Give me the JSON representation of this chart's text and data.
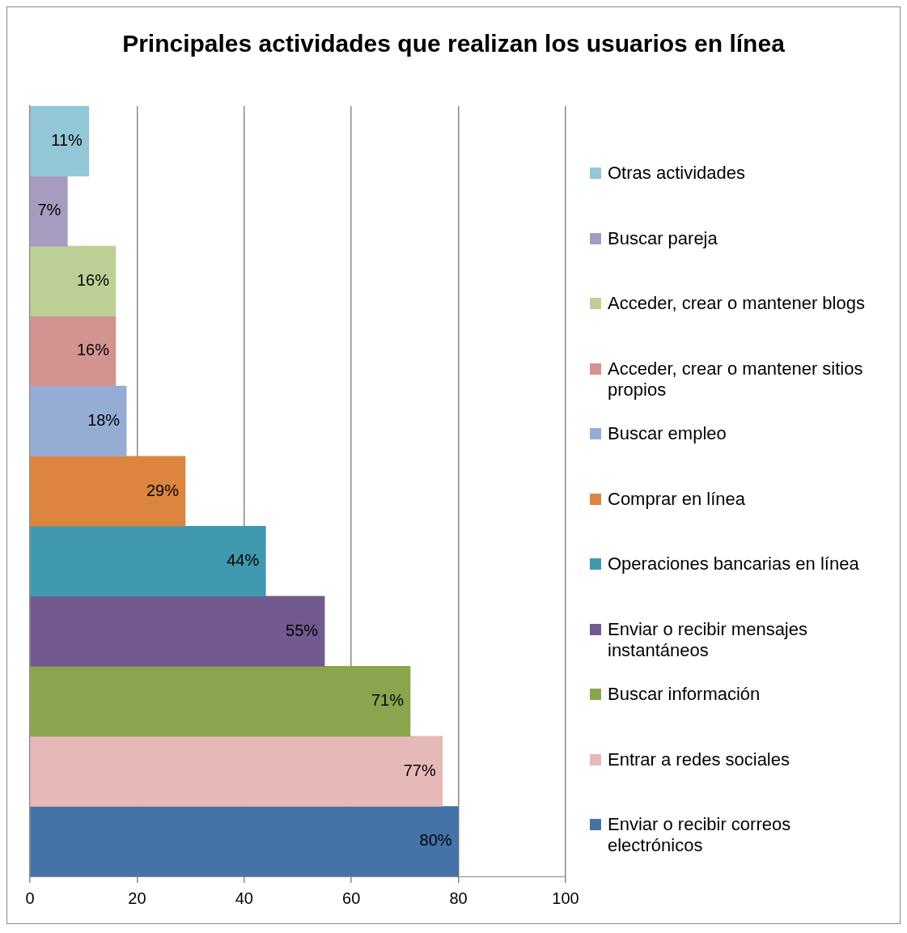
{
  "chart_data": {
    "type": "bar",
    "orientation": "horizontal",
    "title": "Principales actividades que realizan los usuarios en línea",
    "categories": [
      null,
      null,
      null,
      null,
      null,
      null,
      null,
      null,
      null,
      null,
      null
    ],
    "xlim": [
      0,
      100
    ],
    "xticks": [
      0,
      20,
      40,
      60,
      80,
      100
    ],
    "grid": "x",
    "legend": "right",
    "series": [
      {
        "name": "Otras actividades",
        "color": "#93c6d6",
        "values": [
          11,
          null,
          null,
          null,
          null,
          null,
          null,
          null,
          null,
          null,
          null
        ],
        "value_labels": [
          "11%",
          null,
          null,
          null,
          null,
          null,
          null,
          null,
          null,
          null,
          null
        ]
      },
      {
        "name": "Buscar pareja",
        "color": "#a89bc0",
        "values": [
          null,
          7,
          null,
          null,
          null,
          null,
          null,
          null,
          null,
          null,
          null
        ],
        "value_labels": [
          null,
          "7%",
          null,
          null,
          null,
          null,
          null,
          null,
          null,
          null,
          null
        ]
      },
      {
        "name": "Acceder, crear o mantener blogs",
        "color": "#bcd095",
        "values": [
          null,
          null,
          16,
          null,
          null,
          null,
          null,
          null,
          null,
          null,
          null
        ],
        "value_labels": [
          null,
          null,
          "16%",
          null,
          null,
          null,
          null,
          null,
          null,
          null,
          null
        ]
      },
      {
        "name": "Acceder, crear o mantener sitios propios",
        "color": "#d39390",
        "values": [
          null,
          null,
          null,
          16,
          null,
          null,
          null,
          null,
          null,
          null,
          null
        ],
        "value_labels": [
          null,
          null,
          null,
          "16%",
          null,
          null,
          null,
          null,
          null,
          null,
          null
        ]
      },
      {
        "name": "Buscar empleo",
        "color": "#95acd4",
        "values": [
          null,
          null,
          null,
          null,
          18,
          null,
          null,
          null,
          null,
          null,
          null
        ],
        "value_labels": [
          null,
          null,
          null,
          null,
          "18%",
          null,
          null,
          null,
          null,
          null,
          null
        ]
      },
      {
        "name": "Comprar en línea",
        "color": "#dc853f",
        "values": [
          null,
          null,
          null,
          null,
          null,
          29,
          null,
          null,
          null,
          null,
          null
        ],
        "value_labels": [
          null,
          null,
          null,
          null,
          null,
          "29%",
          null,
          null,
          null,
          null,
          null
        ]
      },
      {
        "name": "Operaciones bancarias en línea",
        "color": "#3f98ad",
        "values": [
          null,
          null,
          null,
          null,
          null,
          null,
          44,
          null,
          null,
          null,
          null
        ],
        "value_labels": [
          null,
          null,
          null,
          null,
          null,
          null,
          "44%",
          null,
          null,
          null,
          null
        ]
      },
      {
        "name": "Enviar o recibir mensajes instantáneos",
        "color": "#72598f",
        "values": [
          null,
          null,
          null,
          null,
          null,
          null,
          null,
          55,
          null,
          null,
          null
        ],
        "value_labels": [
          null,
          null,
          null,
          null,
          null,
          null,
          null,
          "55%",
          null,
          null,
          null
        ]
      },
      {
        "name": "Buscar información",
        "color": "#89a64e",
        "values": [
          null,
          null,
          null,
          null,
          null,
          null,
          null,
          null,
          71,
          null,
          null
        ],
        "value_labels": [
          null,
          null,
          null,
          null,
          null,
          null,
          null,
          null,
          "71%",
          null,
          null
        ]
      },
      {
        "name": "Entrar a redes sociales",
        "color": "#e6b9b8",
        "values": [
          null,
          null,
          null,
          null,
          null,
          null,
          null,
          null,
          null,
          77,
          null
        ],
        "value_labels": [
          null,
          null,
          null,
          null,
          null,
          null,
          null,
          null,
          null,
          "77%",
          null
        ]
      },
      {
        "name": "Enviar o recibir correos electrónicos",
        "color": "#4572a7",
        "values": [
          null,
          null,
          null,
          null,
          null,
          null,
          null,
          null,
          null,
          null,
          80
        ],
        "value_labels": [
          null,
          null,
          null,
          null,
          null,
          null,
          null,
          null,
          null,
          null,
          "80%"
        ]
      }
    ]
  }
}
